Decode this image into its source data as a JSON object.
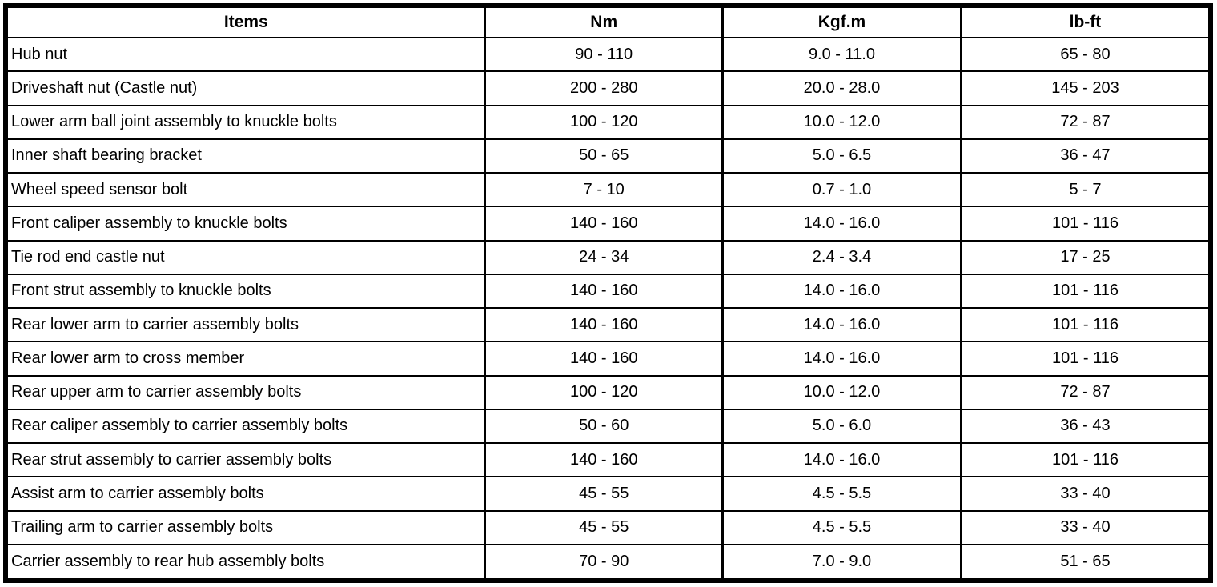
{
  "table": {
    "columns": [
      "Items",
      "Nm",
      "Kgf.m",
      "lb-ft"
    ],
    "rows": [
      {
        "item": "Hub nut",
        "nm": "90 - 110",
        "kgfm": "9.0 - 11.0",
        "lbft": "65 - 80"
      },
      {
        "item": "Driveshaft nut (Castle nut)",
        "nm": "200 - 280",
        "kgfm": "20.0 - 28.0",
        "lbft": "145 - 203"
      },
      {
        "item": "Lower arm ball joint assembly to knuckle bolts",
        "nm": "100 - 120",
        "kgfm": "10.0 - 12.0",
        "lbft": "72 - 87"
      },
      {
        "item": "Inner shaft bearing bracket",
        "nm": "50 - 65",
        "kgfm": "5.0 - 6.5",
        "lbft": "36 - 47"
      },
      {
        "item": "Wheel speed sensor bolt",
        "nm": "7 - 10",
        "kgfm": "0.7 - 1.0",
        "lbft": "5 - 7"
      },
      {
        "item": "Front caliper assembly to knuckle bolts",
        "nm": "140 - 160",
        "kgfm": "14.0 - 16.0",
        "lbft": "101 - 116"
      },
      {
        "item": "Tie rod end castle nut",
        "nm": "24 - 34",
        "kgfm": "2.4 - 3.4",
        "lbft": "17 - 25"
      },
      {
        "item": "Front strut assembly to knuckle bolts",
        "nm": "140 - 160",
        "kgfm": "14.0 - 16.0",
        "lbft": "101 - 116"
      },
      {
        "item": "Rear lower arm to carrier assembly bolts",
        "nm": "140 - 160",
        "kgfm": "14.0 - 16.0",
        "lbft": "101 - 116"
      },
      {
        "item": "Rear lower arm to cross member",
        "nm": "140 - 160",
        "kgfm": "14.0 - 16.0",
        "lbft": "101 - 116"
      },
      {
        "item": "Rear upper arm to carrier assembly bolts",
        "nm": "100 - 120",
        "kgfm": "10.0 - 12.0",
        "lbft": "72 - 87"
      },
      {
        "item": "Rear caliper assembly to carrier assembly bolts",
        "nm": "50 - 60",
        "kgfm": "5.0 - 6.0",
        "lbft": "36 - 43"
      },
      {
        "item": "Rear strut assembly to carrier assembly bolts",
        "nm": "140 - 160",
        "kgfm": "14.0 - 16.0",
        "lbft": "101 - 116"
      },
      {
        "item": "Assist arm to carrier assembly bolts",
        "nm": "45 - 55",
        "kgfm": "4.5 - 5.5",
        "lbft": "33 - 40"
      },
      {
        "item": "Trailing arm to carrier assembly bolts",
        "nm": "45 - 55",
        "kgfm": "4.5 - 5.5",
        "lbft": "33 - 40"
      },
      {
        "item": "Carrier assembly to rear hub assembly bolts",
        "nm": "70 - 90",
        "kgfm": "7.0 - 9.0",
        "lbft": "51 - 65"
      }
    ]
  },
  "colors": {
    "border": "#000000",
    "background": "#ffffff",
    "text": "#000000"
  }
}
